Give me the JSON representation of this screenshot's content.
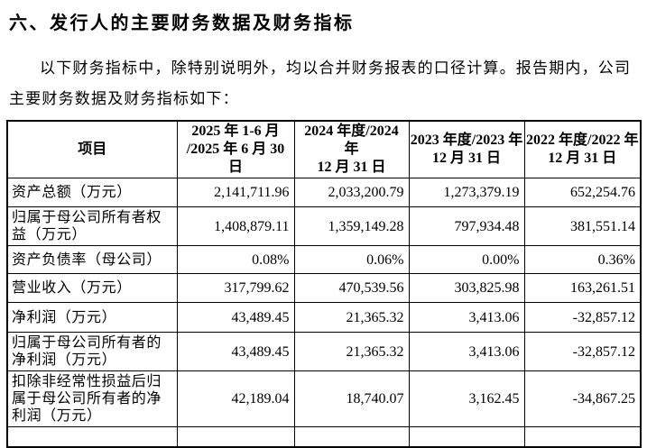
{
  "page": {
    "title": "六、发行人的主要财务数据及财务指标",
    "intro_lines": [
      "以下财务指标中，除特别说明外，均以合并财务报表的口径计算。报告期内，公司",
      "主要财务数据及财务指标如下："
    ]
  },
  "table": {
    "header": {
      "item_label": "项目",
      "periods": [
        {
          "line1": "2025 年 1-6 月",
          "line2": "/2025 年 6 月 30 日"
        },
        {
          "line1": "2024 年度/2024 年",
          "line2": "12 月 31 日"
        },
        {
          "line1": "2023 年度/2023 年",
          "line2": "12 月 31 日"
        },
        {
          "line1": "2022 年度/2022 年",
          "line2": "12 月 31 日"
        }
      ]
    },
    "rows": [
      {
        "item": "资产总额（万元）",
        "values": [
          "2,141,711.96",
          "2,033,200.79",
          "1,273,379.19",
          "652,254.76"
        ]
      },
      {
        "item": "归属于母公司所有者权益（万元）",
        "values": [
          "1,408,879.11",
          "1,359,149.28",
          "797,934.48",
          "381,551.14"
        ]
      },
      {
        "item": "资产负债率（母公司）",
        "values": [
          "0.08%",
          "0.06%",
          "0.00%",
          "0.36%"
        ]
      },
      {
        "item": "营业收入（万元）",
        "values": [
          "317,799.62",
          "470,539.56",
          "303,825.98",
          "163,261.51"
        ]
      },
      {
        "item": "净利润（万元）",
        "values": [
          "43,489.45",
          "21,365.32",
          "3,413.06",
          "-32,857.12"
        ]
      },
      {
        "item": "归属于母公司所有者的净利润（万元）",
        "values": [
          "43,489.45",
          "21,365.32",
          "3,413.06",
          "-32,857.12"
        ]
      },
      {
        "item": "扣除非经常性损益后归属于母公司所有者的净利润（万元）",
        "values": [
          "42,189.04",
          "18,740.07",
          "3,162.45",
          "-34,867.25"
        ]
      }
    ]
  },
  "colors": {
    "text": "#000000",
    "border": "#000000",
    "background": "#ffffff"
  }
}
